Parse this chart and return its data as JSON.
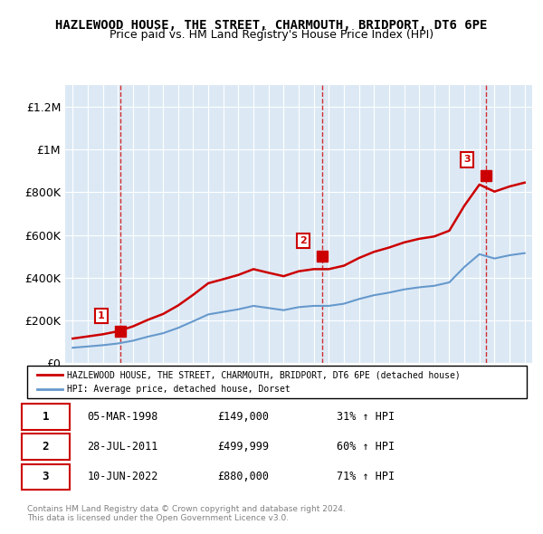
{
  "title": "HAZLEWOOD HOUSE, THE STREET, CHARMOUTH, BRIDPORT, DT6 6PE",
  "subtitle": "Price paid vs. HM Land Registry's House Price Index (HPI)",
  "legend_line1": "HAZLEWOOD HOUSE, THE STREET, CHARMOUTH, BRIDPORT, DT6 6PE (detached house)",
  "legend_line2": "HPI: Average price, detached house, Dorset",
  "sale_color": "#cc0000",
  "hpi_color": "#6699cc",
  "background_color": "#dce9f5",
  "plot_bg": "#dce9f5",
  "ylim": [
    0,
    1300000
  ],
  "yticks": [
    0,
    200000,
    400000,
    600000,
    800000,
    1000000,
    1200000
  ],
  "ytick_labels": [
    "£0",
    "£200K",
    "£400K",
    "£600K",
    "£800K",
    "£1M",
    "£1.2M"
  ],
  "sale_dates": [
    1998.17,
    2011.57,
    2022.44
  ],
  "sale_prices": [
    149000,
    499999,
    880000
  ],
  "sale_labels": [
    "1",
    "2",
    "3"
  ],
  "annotations": [
    {
      "label": "1",
      "date": "05-MAR-1998",
      "price": "£149,000",
      "change": "31% ↑ HPI"
    },
    {
      "label": "2",
      "date": "28-JUL-2011",
      "price": "£499,999",
      "change": "60% ↑ HPI"
    },
    {
      "label": "3",
      "date": "10-JUN-2022",
      "price": "£880,000",
      "change": "71% ↑ HPI"
    }
  ],
  "footer": "Contains HM Land Registry data © Crown copyright and database right 2024.\nThis data is licensed under the Open Government Licence v3.0.",
  "hpi_years": [
    1995,
    1996,
    1997,
    1998,
    1999,
    2000,
    2001,
    2002,
    2003,
    2004,
    2005,
    2006,
    2007,
    2008,
    2009,
    2010,
    2011,
    2012,
    2013,
    2014,
    2015,
    2016,
    2017,
    2018,
    2019,
    2020,
    2021,
    2022,
    2023,
    2024,
    2025
  ],
  "hpi_prices": [
    72000,
    78000,
    84000,
    92000,
    105000,
    124000,
    140000,
    165000,
    196000,
    228000,
    240000,
    252000,
    268000,
    258000,
    248000,
    262000,
    268000,
    268000,
    278000,
    300000,
    318000,
    330000,
    345000,
    355000,
    362000,
    378000,
    450000,
    510000,
    490000,
    505000,
    515000
  ],
  "sale_hpi_indexed": [
    1995,
    1996,
    1997,
    1998,
    1999,
    2000,
    2001,
    2002,
    2003,
    2004,
    2005,
    2006,
    2007,
    2008,
    2009,
    2010,
    2011,
    2012,
    2013,
    2014,
    2015,
    2016,
    2017,
    2018,
    2019,
    2020,
    2021,
    2022,
    2023,
    2024,
    2025
  ],
  "sale_indexed_prices": [
    115000,
    125000,
    135000,
    149000,
    172000,
    203000,
    230000,
    270000,
    320000,
    374000,
    393000,
    413000,
    440000,
    423000,
    407000,
    430000,
    440000,
    440000,
    456000,
    492000,
    521000,
    541000,
    565000,
    582000,
    593000,
    620000,
    737000,
    836000,
    803000,
    827000,
    845000
  ],
  "vline_dates": [
    1998.17,
    2011.57,
    2022.44
  ],
  "xmin": 1994.5,
  "xmax": 2025.5
}
